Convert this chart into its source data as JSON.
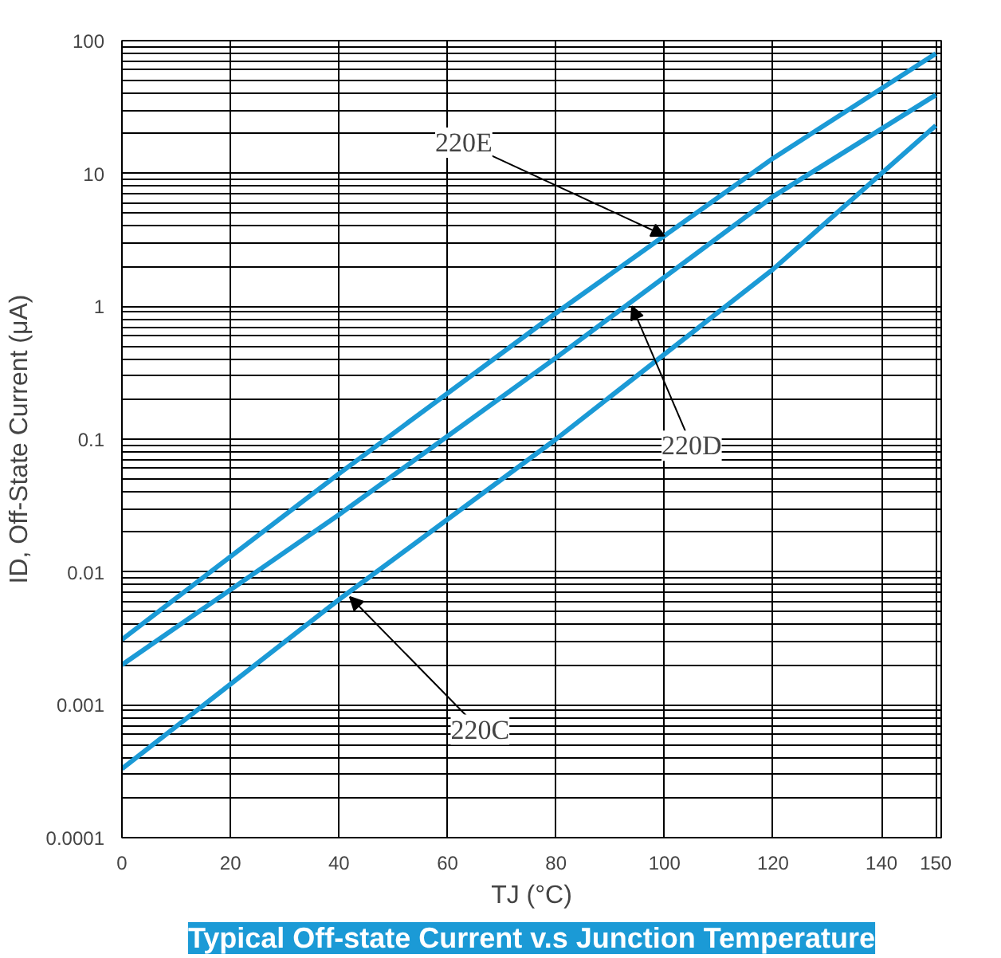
{
  "chart_data": {
    "type": "line",
    "title": "Typical Off-state Current v.s Junction Temperature",
    "xlabel": "TJ (°C)",
    "ylabel": "ID, Off-State Current (μA)",
    "x": [
      0,
      40,
      80,
      120,
      150
    ],
    "series": [
      {
        "color": "#1b9ad6",
        "values": [
          0.00033,
          0.0062,
          0.1,
          1.9,
          23
        ]
      },
      {
        "color": "#1b9ad6",
        "values": [
          0.002,
          0.027,
          0.41,
          6.7,
          39
        ]
      },
      {
        "color": "#1b9ad6",
        "values": [
          0.0031,
          0.055,
          0.89,
          13,
          80
        ]
      }
    ],
    "annotations": [
      {
        "text": "220E",
        "x": 100,
        "y": 3.4
      },
      {
        "text": "220D",
        "x": 94,
        "y": 1.0
      },
      {
        "text": "220C",
        "x": 42,
        "y": 0.0065
      }
    ],
    "log": "y",
    "xlim": [
      0,
      151
    ],
    "ylim": [
      0.0001,
      100
    ],
    "xticks": [
      0,
      20,
      40,
      60,
      80,
      100,
      120,
      140,
      150
    ],
    "yticks": [
      {
        "value": 0.0001,
        "label": "0.0001"
      },
      {
        "value": 0.001,
        "label": "0.001"
      },
      {
        "value": 0.01,
        "label": "0.01"
      },
      {
        "value": 0.1,
        "label": "0.1"
      },
      {
        "value": 1,
        "label": "1"
      },
      {
        "value": 10,
        "label": "10"
      },
      {
        "value": 100,
        "label": "100"
      }
    ],
    "grid": true,
    "line_style": "solid"
  }
}
